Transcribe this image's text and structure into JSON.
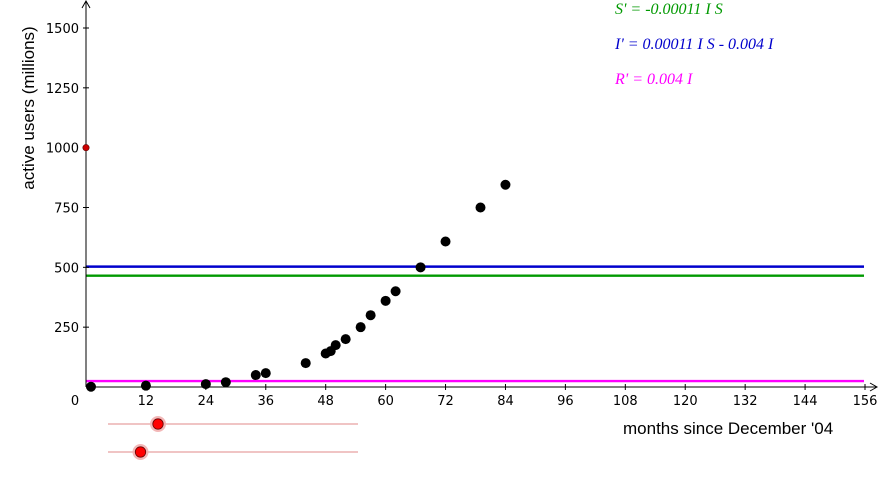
{
  "chart_data": {
    "type": "scatter",
    "xlabel": "months since December '04",
    "ylabel": "active users (millions)",
    "xlim": [
      0,
      156
    ],
    "ylim": [
      0,
      1500
    ],
    "x_ticks": [
      0,
      12,
      24,
      36,
      48,
      60,
      72,
      84,
      96,
      108,
      120,
      132,
      144,
      156
    ],
    "y_ticks": [
      250,
      500,
      750,
      1000,
      1250,
      1500
    ],
    "points": [
      {
        "x": 1,
        "y": 1
      },
      {
        "x": 12,
        "y": 5.5
      },
      {
        "x": 24,
        "y": 12
      },
      {
        "x": 28,
        "y": 20
      },
      {
        "x": 34,
        "y": 50
      },
      {
        "x": 36,
        "y": 58
      },
      {
        "x": 44,
        "y": 100
      },
      {
        "x": 48,
        "y": 140
      },
      {
        "x": 49,
        "y": 150
      },
      {
        "x": 50,
        "y": 175
      },
      {
        "x": 52,
        "y": 200
      },
      {
        "x": 55,
        "y": 250
      },
      {
        "x": 57,
        "y": 300
      },
      {
        "x": 60,
        "y": 360
      },
      {
        "x": 62,
        "y": 400
      },
      {
        "x": 67,
        "y": 500
      },
      {
        "x": 72,
        "y": 608
      },
      {
        "x": 79,
        "y": 750
      },
      {
        "x": 84,
        "y": 845
      }
    ],
    "initial_point": {
      "x": 0,
      "y": 1000
    },
    "lines": [
      {
        "equation": "S' = -0.00011 I S",
        "color": "#009900",
        "y": 465
      },
      {
        "equation": "I' = 0.00011 I S - 0.004 I",
        "color": "#0000cc",
        "y": 503
      },
      {
        "equation": "R' = 0.004 I",
        "color": "#ff00ff",
        "y": 25
      }
    ],
    "sliders": [
      {
        "value": 0.2
      },
      {
        "value": 0.13
      }
    ],
    "colors": {
      "points": "#000000",
      "initial_point": "#cc0000",
      "slider_track": "#e8a0a0",
      "slider_knob": "#ff0000"
    }
  }
}
